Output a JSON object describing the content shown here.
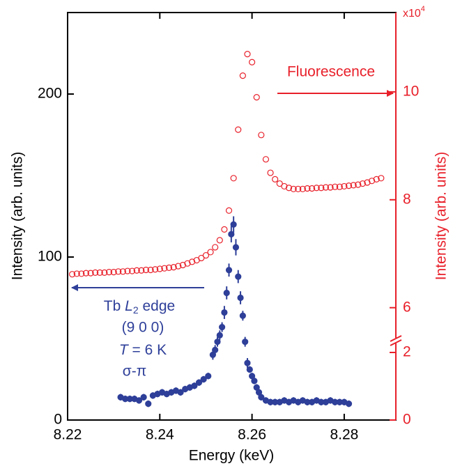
{
  "chart_data": {
    "type": "scatter",
    "xlabel": "Energy (keV)",
    "ylabel": "Intensity (arb. units)",
    "y2label": "Intensity (arb. units)",
    "y2_multiplier": {
      "base": "x10",
      "exponent": "4"
    },
    "xlim": [
      8.22,
      8.2912
    ],
    "xticks": [
      8.22,
      8.24,
      8.26,
      8.28
    ],
    "ylim": [
      0,
      250
    ],
    "yticks": [
      0,
      100,
      200
    ],
    "y2lim": [
      0,
      11.47
    ],
    "y2ticks": [
      0,
      2,
      6,
      8,
      10
    ],
    "y2_break": [
      2,
      5.17
    ],
    "annotations": {
      "fluorescence": "Fluorescence",
      "edge": [
        "Tb ",
        "L",
        "2",
        " edge"
      ],
      "reflection": "(9 0 0)",
      "temperature": [
        "T",
        " = 6 K"
      ],
      "polarization": "σ-π"
    },
    "series": [
      {
        "color": "#e8202a",
        "marker": "open",
        "axis": "y2",
        "x": [
          8.221,
          8.222,
          8.223,
          8.224,
          8.225,
          8.226,
          8.227,
          8.228,
          8.229,
          8.23,
          8.231,
          8.232,
          8.233,
          8.234,
          8.235,
          8.236,
          8.237,
          8.238,
          8.239,
          8.24,
          8.241,
          8.242,
          8.243,
          8.244,
          8.245,
          8.246,
          8.247,
          8.248,
          8.249,
          8.25,
          8.251,
          8.252,
          8.253,
          8.254,
          8.255,
          8.256,
          8.257,
          8.258,
          8.259,
          8.26,
          8.261,
          8.262,
          8.263,
          8.264,
          8.265,
          8.266,
          8.267,
          8.268,
          8.269,
          8.27,
          8.271,
          8.272,
          8.273,
          8.274,
          8.275,
          8.276,
          8.277,
          8.278,
          8.279,
          8.28,
          8.281,
          8.282,
          8.283,
          8.284,
          8.285,
          8.286,
          8.287,
          8.288
        ],
        "values": [
          6.62,
          6.63,
          6.63,
          6.64,
          6.64,
          6.65,
          6.65,
          6.65,
          6.66,
          6.66,
          6.67,
          6.67,
          6.68,
          6.68,
          6.69,
          6.69,
          6.7,
          6.7,
          6.71,
          6.72,
          6.73,
          6.74,
          6.75,
          6.77,
          6.79,
          6.82,
          6.85,
          6.88,
          6.92,
          6.97,
          7.03,
          7.12,
          7.25,
          7.45,
          7.8,
          8.4,
          9.3,
          10.3,
          10.7,
          10.55,
          9.9,
          9.2,
          8.75,
          8.5,
          8.38,
          8.3,
          8.25,
          8.22,
          8.2,
          8.2,
          8.2,
          8.21,
          8.21,
          8.22,
          8.22,
          8.23,
          8.23,
          8.24,
          8.24,
          8.25,
          8.26,
          8.27,
          8.28,
          8.3,
          8.32,
          8.35,
          8.38,
          8.4
        ]
      },
      {
        "color": "#2e3f99",
        "marker": "filled",
        "x": [
          8.2315,
          8.2325,
          8.2335,
          8.2345,
          8.2355,
          8.2365,
          8.2375,
          8.2385,
          8.2395,
          8.2405,
          8.2415,
          8.2425,
          8.2435,
          8.2445,
          8.2455,
          8.2465,
          8.2475,
          8.2485,
          8.2495,
          8.2505,
          8.2515,
          8.252,
          8.2525,
          8.253,
          8.2535,
          8.254,
          8.2545,
          8.255,
          8.2555,
          8.256,
          8.2565,
          8.257,
          8.2575,
          8.258,
          8.2585,
          8.259,
          8.2595,
          8.26,
          8.2605,
          8.261,
          8.2615,
          8.262,
          8.263,
          8.264,
          8.265,
          8.266,
          8.267,
          8.268,
          8.269,
          8.27,
          8.271,
          8.272,
          8.273,
          8.274,
          8.275,
          8.276,
          8.277,
          8.278,
          8.279,
          8.28,
          8.281
        ],
        "values": [
          14,
          13,
          13,
          13,
          12,
          14,
          10,
          15,
          16,
          17,
          16,
          17,
          18,
          17,
          19,
          20,
          21,
          23,
          25,
          27,
          40,
          43,
          48,
          52,
          57,
          66,
          78,
          92,
          114,
          120,
          106,
          88,
          75,
          64,
          48,
          35,
          31,
          27,
          24,
          20,
          17,
          14,
          12,
          11,
          11,
          11,
          12,
          11,
          12,
          11,
          12,
          11,
          11,
          12,
          11,
          11,
          12,
          11,
          11,
          11,
          10
        ],
        "errors": [
          2,
          2,
          2,
          2,
          2,
          2,
          2,
          2,
          2,
          2,
          2,
          2,
          2,
          2,
          2,
          2,
          2,
          2,
          2,
          2,
          3,
          3,
          3,
          3,
          3,
          4,
          4,
          4,
          5,
          5,
          5,
          4,
          4,
          3,
          3,
          3,
          2,
          2,
          2,
          2,
          2,
          2,
          2,
          2,
          2,
          2,
          2,
          2,
          2,
          2,
          2,
          2,
          2,
          2,
          2,
          2,
          2,
          2,
          2,
          2,
          2
        ]
      }
    ]
  }
}
